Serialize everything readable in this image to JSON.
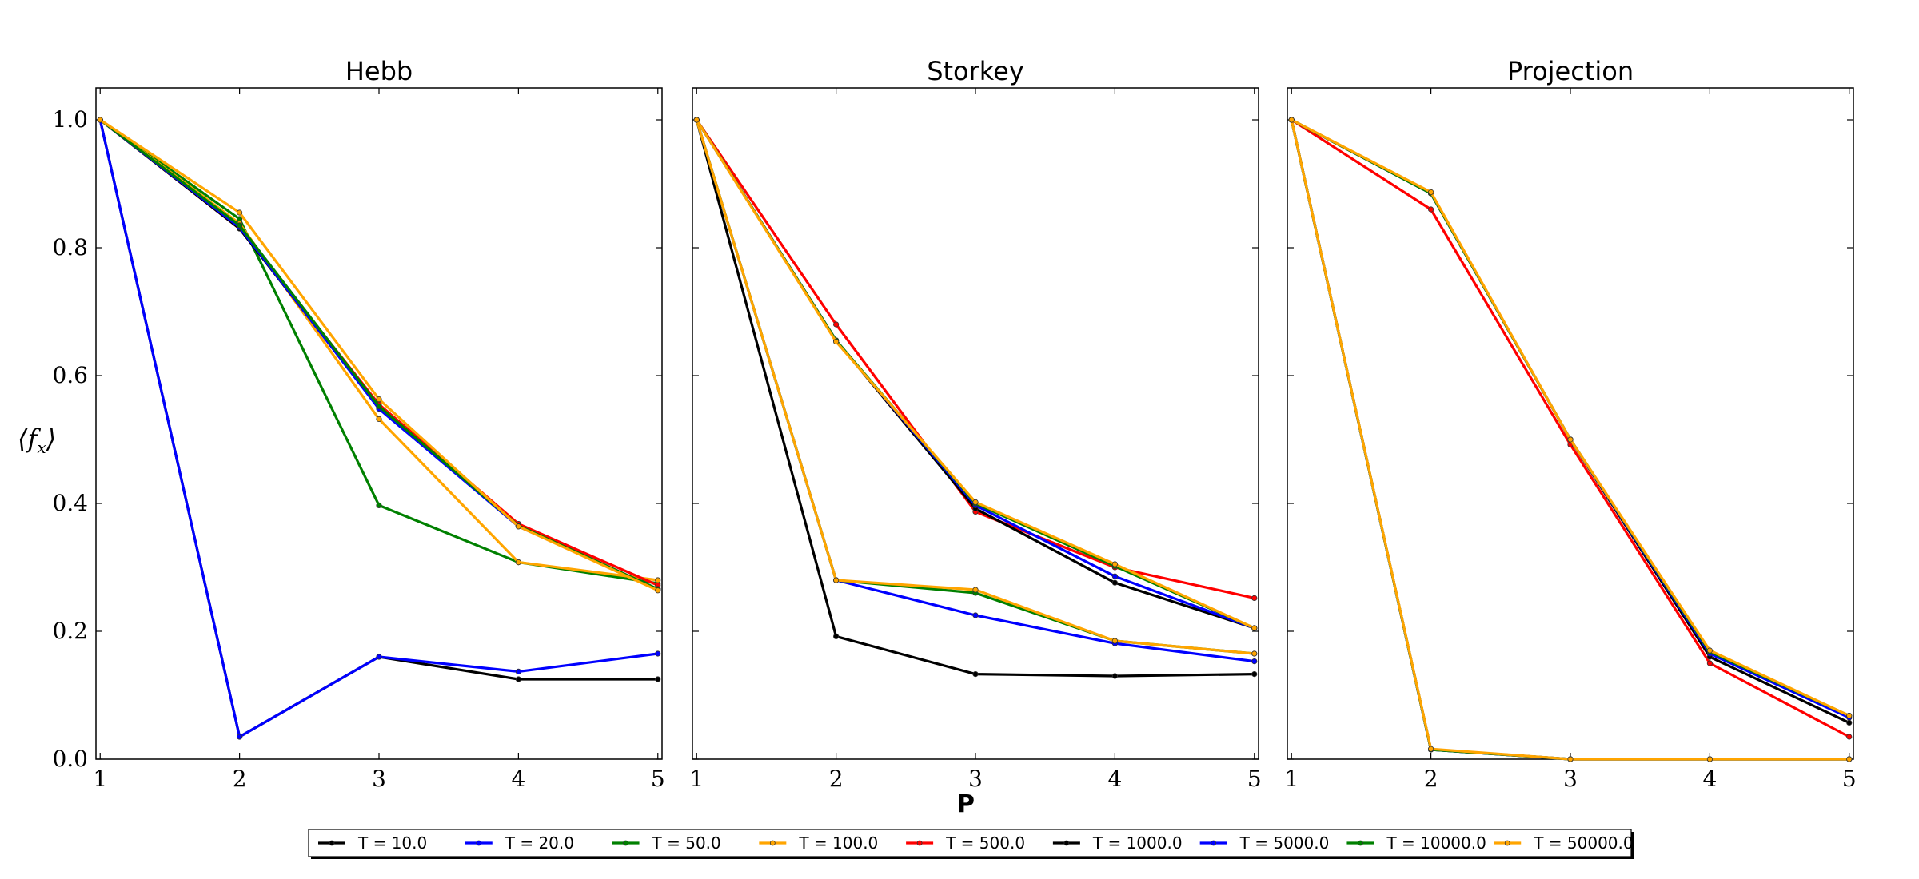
{
  "chart_data": {
    "type": "line",
    "x": [
      1,
      2,
      3,
      4,
      5
    ],
    "xlabel": "P",
    "ylabel": "⟨f",
    "ylabel_sub": "x",
    "ylabel_close": "⟩",
    "ylim": [
      0.0,
      1.05
    ],
    "xlim": [
      0.97,
      5.03
    ],
    "yticks": [
      "0.0",
      "0.2",
      "0.4",
      "0.6",
      "0.8",
      "1.0"
    ],
    "xticks": [
      "1",
      "2",
      "3",
      "4",
      "5"
    ],
    "legend": {
      "placement": "bottom-center",
      "entries": [
        {
          "label": "T = 10.0",
          "color": "#000000"
        },
        {
          "label": "T = 20.0",
          "color": "#0000ff"
        },
        {
          "label": "T = 50.0",
          "color": "#008000"
        },
        {
          "label": "T = 100.0",
          "color": "#ffa500"
        },
        {
          "label": "T = 500.0",
          "color": "#ff0000"
        },
        {
          "label": "T = 1000.0",
          "color": "#000000"
        },
        {
          "label": "T = 5000.0",
          "color": "#0000ff"
        },
        {
          "label": "T = 10000.0",
          "color": "#008000"
        },
        {
          "label": "T = 50000.0",
          "color": "#ffa500"
        }
      ]
    },
    "panels": [
      {
        "title": "Hebb",
        "series": [
          {
            "name": "T = 10.0",
            "color": "#000000",
            "values": [
              1.0,
              0.035,
              0.16,
              0.125,
              0.125
            ]
          },
          {
            "name": "T = 20.0",
            "color": "#0000ff",
            "values": [
              1.0,
              0.035,
              0.16,
              0.137,
              0.165
            ]
          },
          {
            "name": "T = 50.0",
            "color": "#008000",
            "values": [
              1.0,
              0.845,
              0.397,
              0.308,
              0.275
            ]
          },
          {
            "name": "T = 100.0",
            "color": "#ffa500",
            "values": [
              1.0,
              0.838,
              0.532,
              0.308,
              0.28
            ]
          },
          {
            "name": "T = 500.0",
            "color": "#ff0000",
            "values": [
              1.0,
              0.83,
              0.555,
              0.368,
              0.272
            ]
          },
          {
            "name": "T = 1000.0",
            "color": "#000000",
            "values": [
              1.0,
              0.83,
              0.55,
              0.365,
              0.266
            ]
          },
          {
            "name": "T = 5000.0",
            "color": "#0000ff",
            "values": [
              1.0,
              0.832,
              0.548,
              0.364,
              0.266
            ]
          },
          {
            "name": "T = 10000.0",
            "color": "#008000",
            "values": [
              1.0,
              0.835,
              0.552,
              0.365,
              0.266
            ]
          },
          {
            "name": "T = 50000.0",
            "color": "#ffa500",
            "values": [
              1.0,
              0.855,
              0.563,
              0.364,
              0.264
            ]
          }
        ]
      },
      {
        "title": "Storkey",
        "series": [
          {
            "name": "T = 10.0",
            "color": "#000000",
            "values": [
              1.0,
              0.192,
              0.133,
              0.13,
              0.133
            ]
          },
          {
            "name": "T = 20.0",
            "color": "#0000ff",
            "values": [
              1.0,
              0.28,
              0.225,
              0.181,
              0.153
            ]
          },
          {
            "name": "T = 50.0",
            "color": "#008000",
            "values": [
              1.0,
              0.28,
              0.26,
              0.185,
              0.165
            ]
          },
          {
            "name": "T = 100.0",
            "color": "#ffa500",
            "values": [
              1.0,
              0.28,
              0.265,
              0.185,
              0.165
            ]
          },
          {
            "name": "T = 500.0",
            "color": "#ff0000",
            "values": [
              1.0,
              0.68,
              0.387,
              0.3,
              0.252
            ]
          },
          {
            "name": "T = 1000.0",
            "color": "#000000",
            "values": [
              1.0,
              0.655,
              0.392,
              0.276,
              0.205
            ]
          },
          {
            "name": "T = 5000.0",
            "color": "#0000ff",
            "values": [
              1.0,
              0.655,
              0.397,
              0.286,
              0.205
            ]
          },
          {
            "name": "T = 10000.0",
            "color": "#008000",
            "values": [
              1.0,
              0.655,
              0.4,
              0.302,
              0.205
            ]
          },
          {
            "name": "T = 50000.0",
            "color": "#ffa500",
            "values": [
              1.0,
              0.653,
              0.402,
              0.305,
              0.205
            ]
          }
        ]
      },
      {
        "title": "Projection",
        "series": [
          {
            "name": "T = 10.0",
            "color": "#000000",
            "values": [
              1.0,
              0.015,
              0.0,
              0.0,
              0.0
            ]
          },
          {
            "name": "T = 20.0",
            "color": "#0000ff",
            "values": [
              1.0,
              0.015,
              0.0,
              0.0,
              0.0
            ]
          },
          {
            "name": "T = 50.0",
            "color": "#008000",
            "values": [
              1.0,
              0.015,
              0.0,
              0.0,
              0.0
            ]
          },
          {
            "name": "T = 100.0",
            "color": "#ffa500",
            "values": [
              1.0,
              0.016,
              0.0,
              0.0,
              0.0
            ]
          },
          {
            "name": "T = 500.0",
            "color": "#ff0000",
            "values": [
              1.0,
              0.86,
              0.492,
              0.15,
              0.035
            ]
          },
          {
            "name": "T = 1000.0",
            "color": "#000000",
            "values": [
              1.0,
              0.885,
              0.5,
              0.16,
              0.057
            ]
          },
          {
            "name": "T = 5000.0",
            "color": "#0000ff",
            "values": [
              1.0,
              0.885,
              0.5,
              0.165,
              0.065
            ]
          },
          {
            "name": "T = 10000.0",
            "color": "#008000",
            "values": [
              1.0,
              0.885,
              0.5,
              0.168,
              0.068
            ]
          },
          {
            "name": "T = 50000.0",
            "color": "#ffa500",
            "values": [
              1.0,
              0.887,
              0.5,
              0.17,
              0.068
            ]
          }
        ]
      }
    ]
  }
}
